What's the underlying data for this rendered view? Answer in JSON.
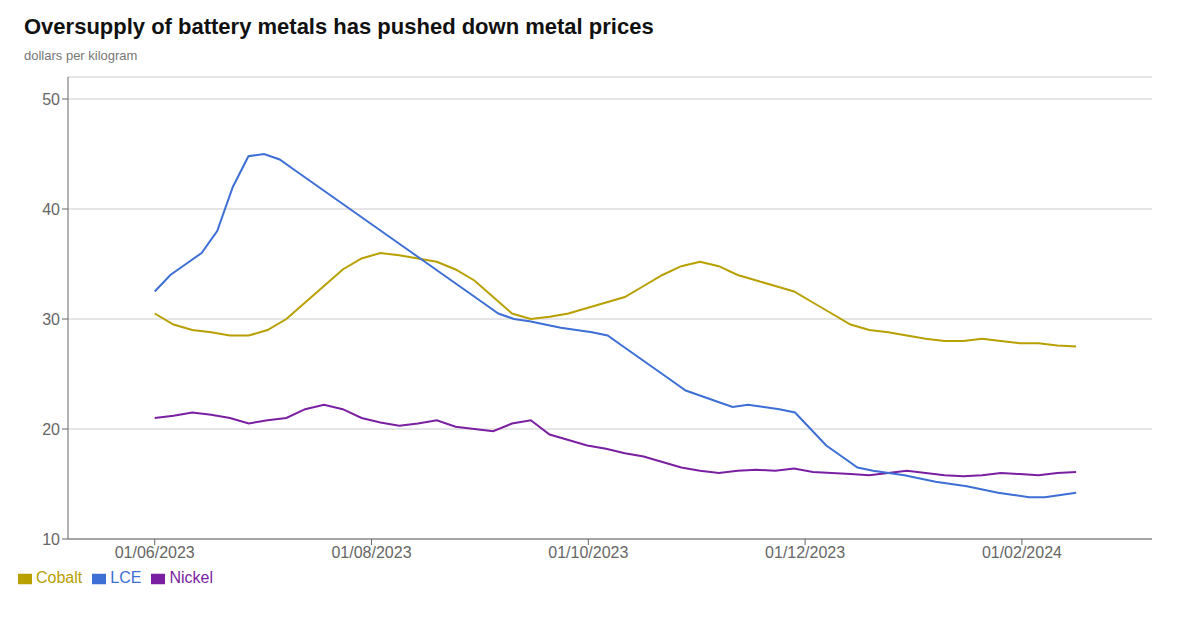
{
  "chart_data": {
    "type": "line",
    "title": "Oversupply of battery metals has pushed down metal prices",
    "ylabel": "dollars per kilogram",
    "xlim": [
      4.2,
      14.2
    ],
    "xticks": [
      {
        "value": 5,
        "label": "01/06/2023"
      },
      {
        "value": 7,
        "label": "01/08/2023"
      },
      {
        "value": 9,
        "label": "01/10/2023"
      },
      {
        "value": 11,
        "label": "01/12/2023"
      },
      {
        "value": 13,
        "label": "01/02/2024"
      }
    ],
    "ylim": [
      10,
      52
    ],
    "yticks": [
      10,
      20,
      30,
      40,
      50
    ],
    "grid": true,
    "legend": "bottom",
    "series": [
      {
        "name": "Nickel",
        "color": "#7b1fa2",
        "x": [
          5,
          5.173469,
          5.346939,
          5.520408,
          5.693878,
          5.867347,
          6.040816,
          6.214286,
          6.387755,
          6.561224,
          6.734694,
          6.908163,
          7.081633,
          7.255102,
          7.428571,
          7.602041,
          7.77551,
          7.94898,
          8.122449,
          8.295918,
          8.469388,
          8.642857,
          8.816327,
          8.989796,
          9.163265,
          9.336735,
          9.510204,
          9.683673,
          9.857143,
          10.030612,
          10.204082,
          10.377551,
          10.55102,
          10.72449,
          10.897959,
          11.071429,
          11.244898,
          11.418367,
          11.591837,
          11.765306,
          11.938776,
          12.112245,
          12.285714,
          12.459184,
          12.632653,
          12.806122,
          12.979592,
          13.153061,
          13.326531,
          13.5
        ],
        "values": [
          21.0,
          21.2,
          21.5,
          21.3,
          21.0,
          20.5,
          20.8,
          21.0,
          21.8,
          22.2,
          21.8,
          21.0,
          20.6,
          20.3,
          20.5,
          20.8,
          20.2,
          20.0,
          19.8,
          20.5,
          20.8,
          19.5,
          19.0,
          18.5,
          18.2,
          17.8,
          17.5,
          17.0,
          16.5,
          16.2,
          16.0,
          16.2,
          16.3,
          16.2,
          16.4,
          16.1,
          16.0,
          15.9,
          15.8,
          16.0,
          16.2,
          16.0,
          15.8,
          15.7,
          15.8,
          16.0,
          15.9,
          15.8,
          16.0,
          16.1
        ]
      },
      {
        "name": "Cobalt",
        "color": "#b8a000",
        "x": [
          5,
          5.173469,
          5.346939,
          5.520408,
          5.693878,
          5.867347,
          6.040816,
          6.214286,
          6.387755,
          6.561224,
          6.734694,
          6.908163,
          7.081633,
          7.255102,
          7.428571,
          7.602041,
          7.77551,
          7.94898,
          8.122449,
          8.295918,
          8.469388,
          8.642857,
          8.816327,
          8.989796,
          9.163265,
          9.336735,
          9.510204,
          9.683673,
          9.857143,
          10.030612,
          10.204082,
          10.377551,
          10.55102,
          10.72449,
          10.897959,
          11.071429,
          11.244898,
          11.418367,
          11.591837,
          11.765306,
          11.938776,
          12.112245,
          12.285714,
          12.459184,
          12.632653,
          12.806122,
          12.979592,
          13.153061,
          13.326531,
          13.5
        ],
        "values": [
          30.5,
          29.5,
          29.0,
          28.8,
          28.5,
          28.5,
          29.0,
          30.0,
          31.5,
          33.0,
          34.5,
          35.5,
          36.0,
          35.8,
          35.5,
          35.2,
          34.5,
          33.5,
          32.0,
          30.5,
          30.0,
          30.2,
          30.5,
          31.0,
          31.5,
          32.0,
          33.0,
          34.0,
          34.8,
          35.2,
          34.8,
          34.0,
          33.5,
          33.0,
          32.5,
          31.5,
          30.5,
          29.5,
          29.0,
          28.8,
          28.5,
          28.2,
          28.0,
          28.0,
          28.2,
          28.0,
          27.8,
          27.8,
          27.6,
          27.5
        ]
      },
      {
        "name": "LCE",
        "color": "#3d6fd4",
        "x": [
          5,
          5.144068,
          5.288136,
          5.432203,
          5.576271,
          5.720339,
          5.864407,
          6.008475,
          6.152542,
          6.29661,
          6.440678,
          6.584746,
          6.728814,
          6.872881,
          7.016949,
          7.161017,
          7.305085,
          7.449153,
          7.59322,
          7.737288,
          7.881356,
          8.025424,
          8.169492,
          8.313559,
          8.457627,
          8.601695,
          8.745763,
          8.889831,
          9.033898,
          9.177966,
          9.322034,
          9.466102,
          9.610169,
          9.754237,
          9.898305,
          10.042373,
          10.186441,
          10.330508,
          10.474576,
          10.618644,
          10.762712,
          10.90678,
          11.050847,
          11.194915,
          11.338983,
          11.483051,
          11.627119,
          11.771186,
          11.915254,
          12.059322,
          12.20339,
          12.347458,
          12.491525,
          12.635593,
          12.779661,
          12.923729,
          13.067797,
          13.211864,
          13.355932,
          13.5
        ],
        "values": [
          32.5,
          34.0,
          35.0,
          36.0,
          38.0,
          42.0,
          44.8,
          45.0,
          44.5,
          43.5,
          42.5,
          41.5,
          40.5,
          39.5,
          38.5,
          37.5,
          36.5,
          35.5,
          34.5,
          33.5,
          32.5,
          31.5,
          30.5,
          30.0,
          29.8,
          29.5,
          29.2,
          29.0,
          28.8,
          28.5,
          27.5,
          26.5,
          25.5,
          24.5,
          23.5,
          23.0,
          22.5,
          22.0,
          22.2,
          22.0,
          21.8,
          21.5,
          20.0,
          18.5,
          17.5,
          16.5,
          16.2,
          16.0,
          15.8,
          15.5,
          15.2,
          15.0,
          14.8,
          14.5,
          14.2,
          14.0,
          13.8,
          13.8,
          14.0,
          14.2
        ]
      }
    ]
  }
}
